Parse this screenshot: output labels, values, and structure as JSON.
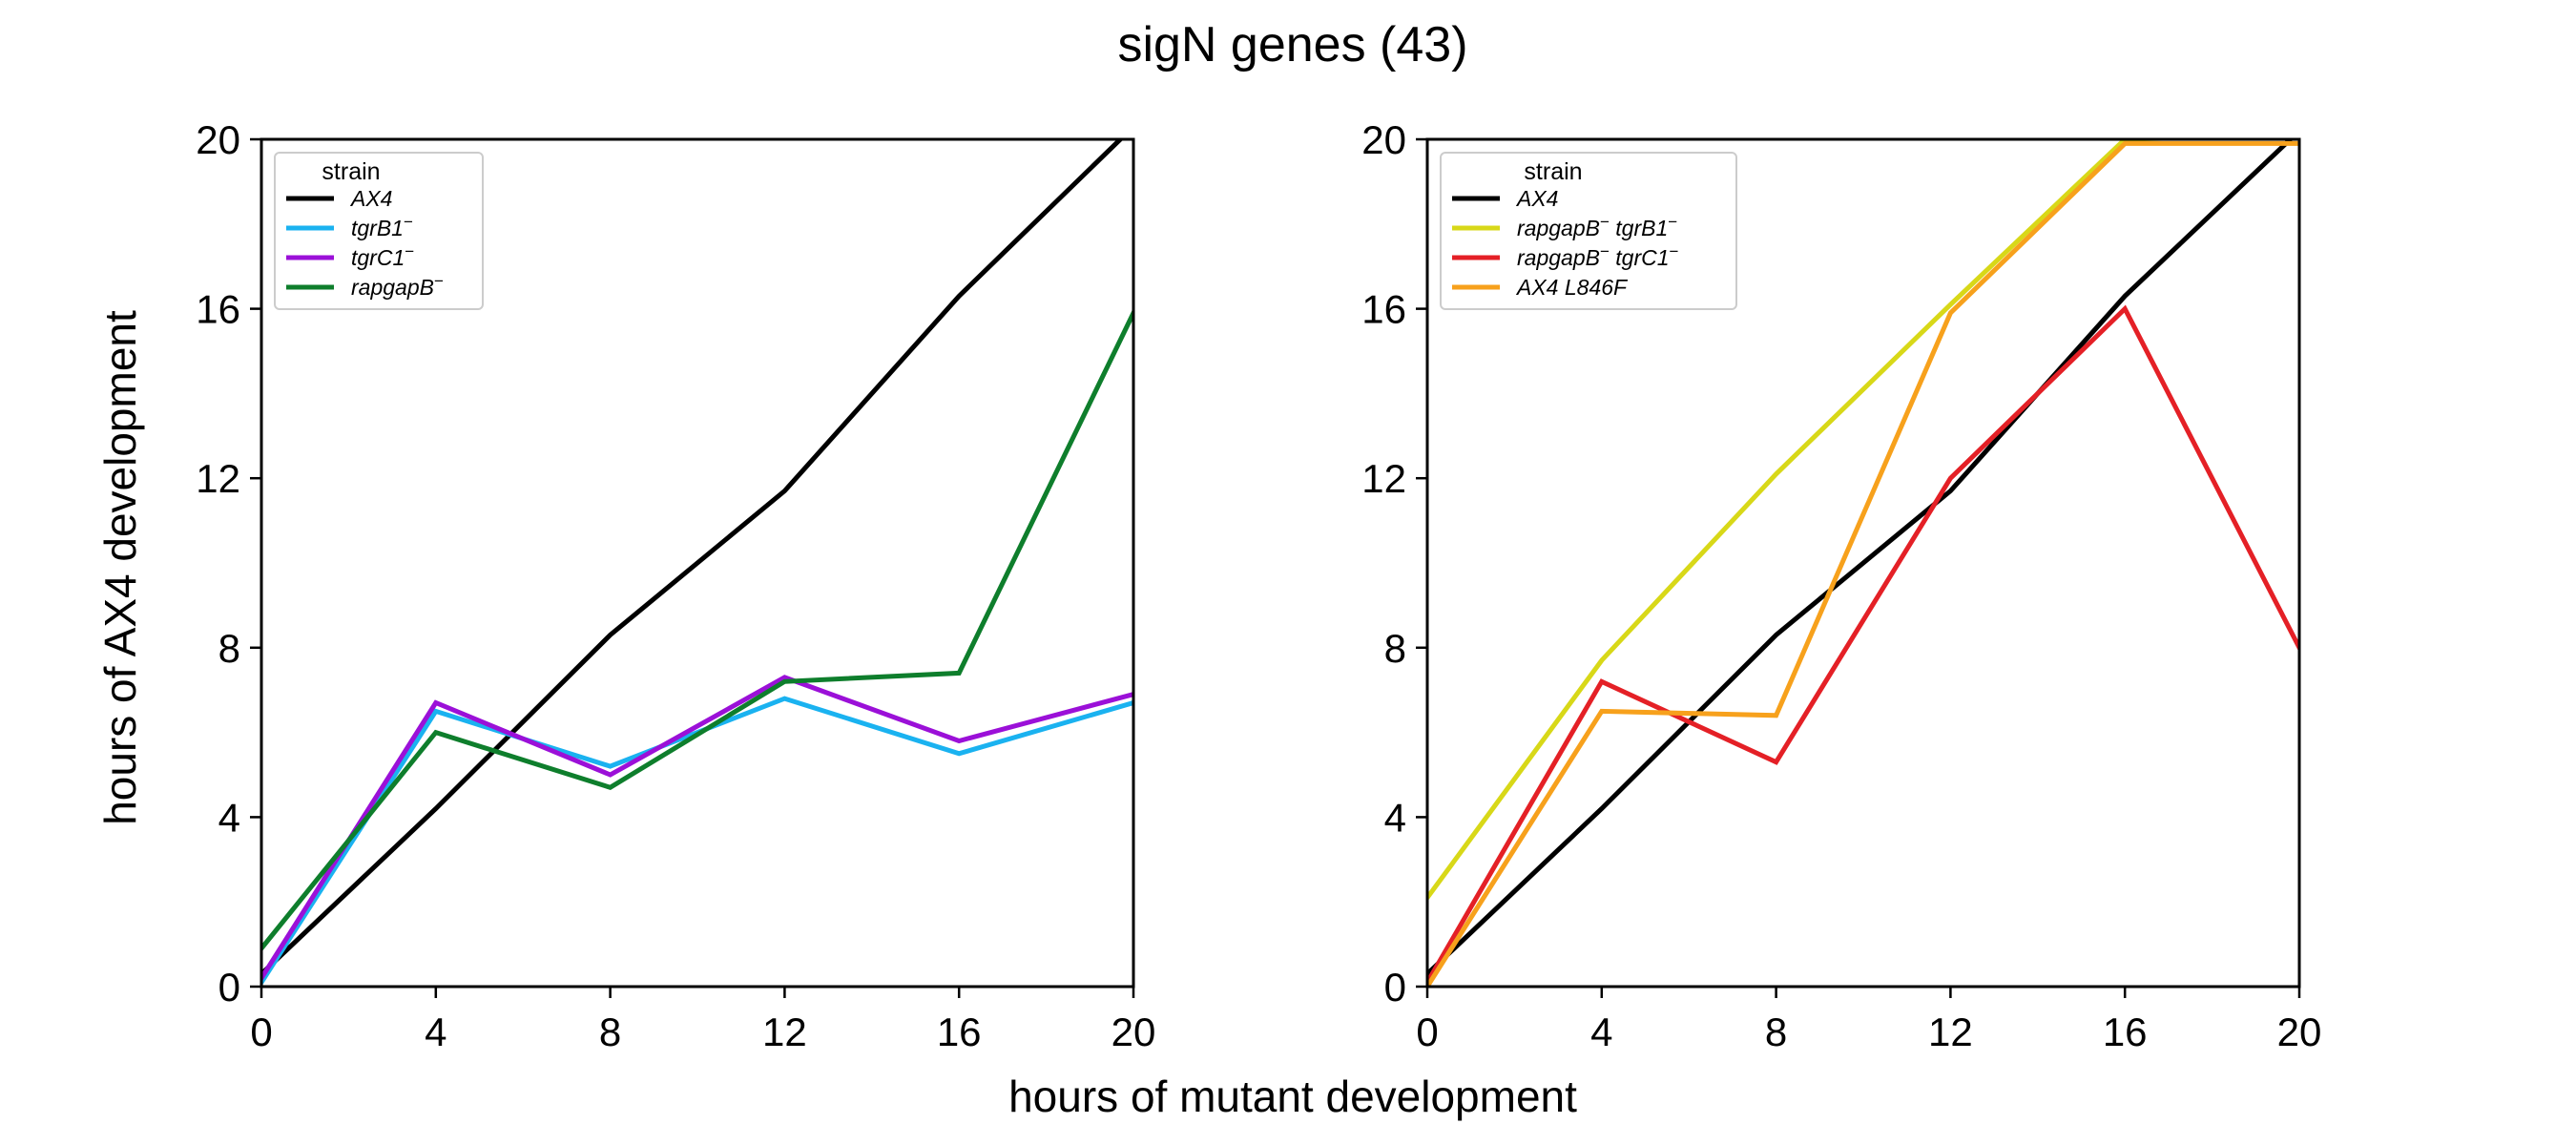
{
  "figure": {
    "title": "sigN genes (43)",
    "xlabel": "hours of mutant development",
    "ylabel": "hours of AX4 development"
  },
  "chart_data": [
    {
      "type": "line",
      "x": [
        0,
        4,
        8,
        12,
        16,
        20
      ],
      "xlim": [
        0,
        20
      ],
      "ylim": [
        0,
        20
      ],
      "xticks": [
        0,
        4,
        8,
        12,
        16,
        20
      ],
      "yticks": [
        0,
        4,
        8,
        12,
        16,
        20
      ],
      "grid": false,
      "legend": {
        "title": "strain",
        "position": "top-left"
      },
      "series": [
        {
          "name": "AX4",
          "sup": "",
          "color": "#000000",
          "values": [
            0.3,
            4.2,
            8.3,
            11.7,
            16.3,
            20.3
          ]
        },
        {
          "name": "tgrB1",
          "sup": "−",
          "color": "#1AB2F0",
          "values": [
            0.1,
            6.5,
            5.2,
            6.8,
            5.5,
            6.7
          ]
        },
        {
          "name": "tgrC1",
          "sup": "−",
          "color": "#9B10D8",
          "values": [
            0.2,
            6.7,
            5.0,
            7.3,
            5.8,
            6.9
          ]
        },
        {
          "name": "rapgapB",
          "sup": "−",
          "color": "#0E7E2C",
          "values": [
            0.9,
            6.0,
            4.7,
            7.2,
            7.4,
            15.9
          ]
        }
      ]
    },
    {
      "type": "line",
      "x": [
        0,
        4,
        8,
        12,
        16,
        20
      ],
      "xlim": [
        0,
        20
      ],
      "ylim": [
        0,
        20
      ],
      "xticks": [
        0,
        4,
        8,
        12,
        16,
        20
      ],
      "yticks": [
        0,
        4,
        8,
        12,
        16,
        20
      ],
      "grid": false,
      "legend": {
        "title": "strain",
        "position": "top-left"
      },
      "series": [
        {
          "name": "AX4",
          "sup": "",
          "color": "#000000",
          "values": [
            0.3,
            4.2,
            8.3,
            11.7,
            16.3,
            20.2
          ]
        },
        {
          "name": "rapgapB",
          "sup": "−",
          "name2": "tgrB1",
          "sup2": "−",
          "color": "#D8D818",
          "values": [
            2.1,
            7.7,
            12.1,
            16.1,
            20.0,
            20.1
          ]
        },
        {
          "name": "rapgapB",
          "sup": "−",
          "name2": "tgrC1",
          "sup2": "−",
          "color": "#E42026",
          "values": [
            0.1,
            7.2,
            5.3,
            12.0,
            16.0,
            8.0
          ]
        },
        {
          "name": "AX4 L846F",
          "sup": "",
          "color": "#F7A11C",
          "values": [
            0.0,
            6.5,
            6.4,
            15.9,
            19.9,
            19.9
          ]
        }
      ]
    }
  ]
}
